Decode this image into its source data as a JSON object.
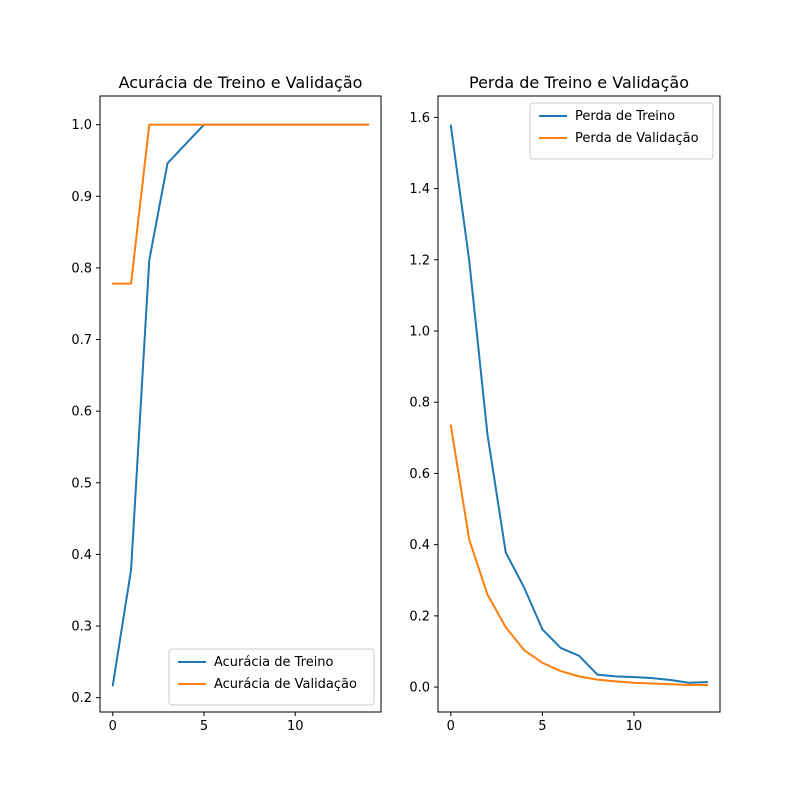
{
  "chart_data": [
    {
      "type": "line",
      "title": "Acurácia de Treino e Validação",
      "xlabel": "",
      "ylabel": "",
      "xlim": [
        -0.7,
        14.7
      ],
      "ylim": [
        0.18,
        1.04
      ],
      "xticks": [
        0,
        5,
        10
      ],
      "yticks": [
        0.2,
        0.3,
        0.4,
        0.5,
        0.6,
        0.7,
        0.8,
        0.9,
        1.0
      ],
      "grid": false,
      "legend_position": "lower-right",
      "x": [
        0,
        1,
        2,
        3,
        4,
        5,
        6,
        7,
        8,
        9,
        10,
        11,
        12,
        13,
        14
      ],
      "series": [
        {
          "name": "Acurácia de Treino",
          "color": "#1f77b4",
          "values": [
            0.217,
            0.378,
            0.811,
            0.946,
            0.973,
            1.0,
            1.0,
            1.0,
            1.0,
            1.0,
            1.0,
            1.0,
            1.0,
            1.0,
            1.0
          ]
        },
        {
          "name": "Acurácia de Validação",
          "color": "#ff7f0e",
          "values": [
            0.778,
            0.778,
            1.0,
            1.0,
            1.0,
            1.0,
            1.0,
            1.0,
            1.0,
            1.0,
            1.0,
            1.0,
            1.0,
            1.0,
            1.0
          ]
        }
      ]
    },
    {
      "type": "line",
      "title": "Perda de Treino e Validação",
      "xlabel": "",
      "ylabel": "",
      "xlim": [
        -0.7,
        14.7
      ],
      "ylim": [
        -0.07,
        1.66
      ],
      "xticks": [
        0,
        5,
        10
      ],
      "yticks": [
        0.0,
        0.2,
        0.4,
        0.6,
        0.8,
        1.0,
        1.2,
        1.4,
        1.6
      ],
      "grid": false,
      "legend_position": "upper-right",
      "x": [
        0,
        1,
        2,
        3,
        4,
        5,
        6,
        7,
        8,
        9,
        10,
        11,
        12,
        13,
        14
      ],
      "series": [
        {
          "name": "Perda de Treino",
          "color": "#1f77b4",
          "values": [
            1.577,
            1.2,
            0.71,
            0.378,
            0.28,
            0.162,
            0.11,
            0.088,
            0.035,
            0.03,
            0.028,
            0.025,
            0.02,
            0.012,
            0.014
          ]
        },
        {
          "name": "Perda de Validação",
          "color": "#ff7f0e",
          "values": [
            0.735,
            0.415,
            0.26,
            0.168,
            0.104,
            0.068,
            0.045,
            0.03,
            0.021,
            0.016,
            0.012,
            0.01,
            0.008,
            0.006,
            0.006
          ]
        }
      ]
    }
  ]
}
